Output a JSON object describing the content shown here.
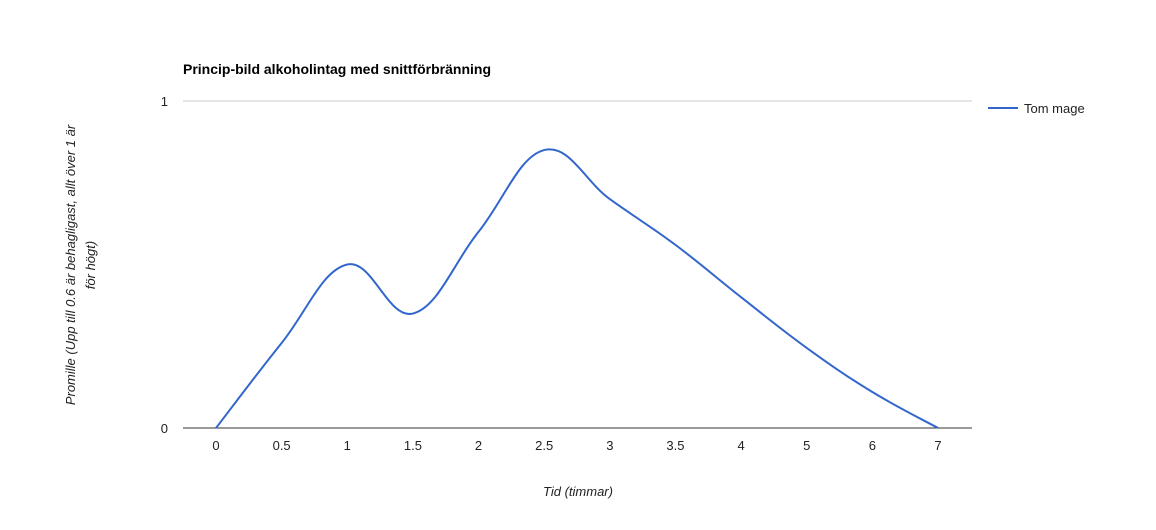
{
  "chart_data": {
    "type": "line",
    "title": "Princip-bild alkoholintag med snittförbränning",
    "xlabel": "Tid (timmar)",
    "ylabel_lines": [
      "Promille (Upp till 0.6 är behagligast, allt över 1 är",
      "för högt)"
    ],
    "categories": [
      "0",
      "0.5",
      "1",
      "1.5",
      "2",
      "2.5",
      "3",
      "3.5",
      "4",
      "5",
      "6",
      "7"
    ],
    "series": [
      {
        "name": "Tom mage",
        "color": "#3366cc",
        "values": [
          0,
          0.26,
          0.5,
          0.35,
          0.6,
          0.85,
          0.7,
          0.56,
          0.4,
          0.245,
          0.11,
          0
        ]
      }
    ],
    "ylim": [
      0,
      1
    ],
    "yticks": [
      "0",
      "1"
    ],
    "grid": true,
    "curve": "smooth",
    "legend_position": "right"
  }
}
